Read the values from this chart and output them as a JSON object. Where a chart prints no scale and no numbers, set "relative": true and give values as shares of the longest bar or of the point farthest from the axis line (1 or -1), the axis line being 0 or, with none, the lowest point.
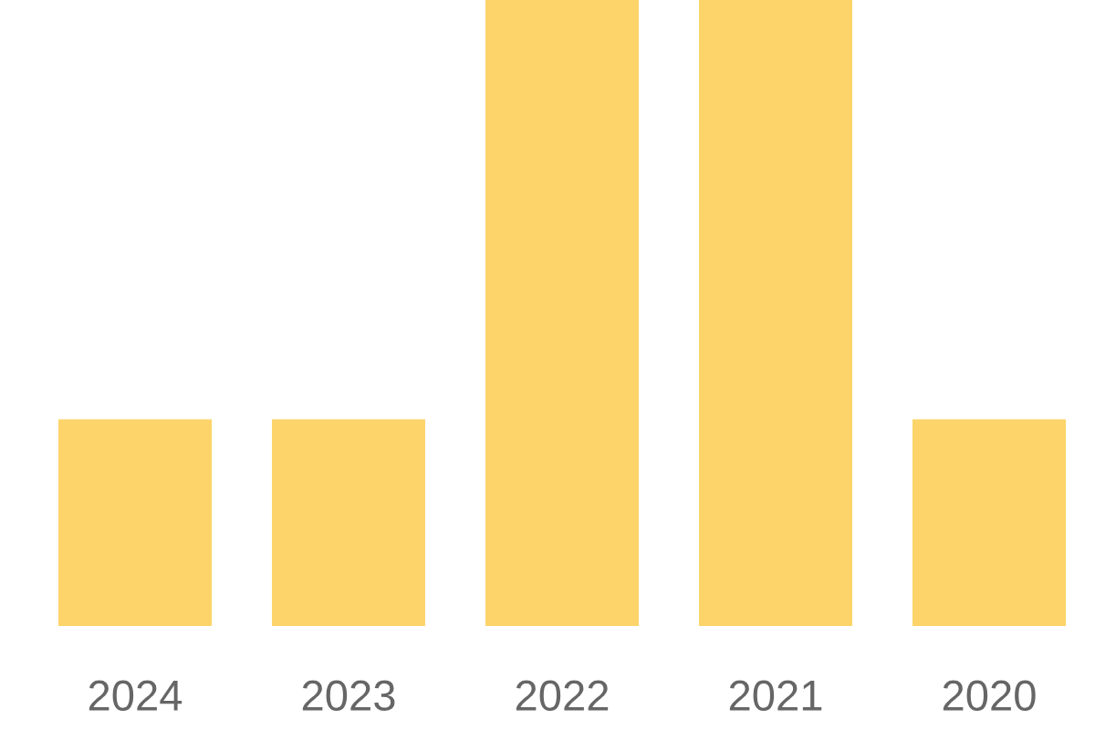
{
  "chart_data": {
    "type": "bar",
    "relative": true,
    "categories": [
      "2024",
      "2023",
      "2022",
      "2021",
      "2020"
    ],
    "values": [
      0.33,
      0.33,
      1,
      1,
      0.33
    ],
    "color": "#fdd46a"
  }
}
